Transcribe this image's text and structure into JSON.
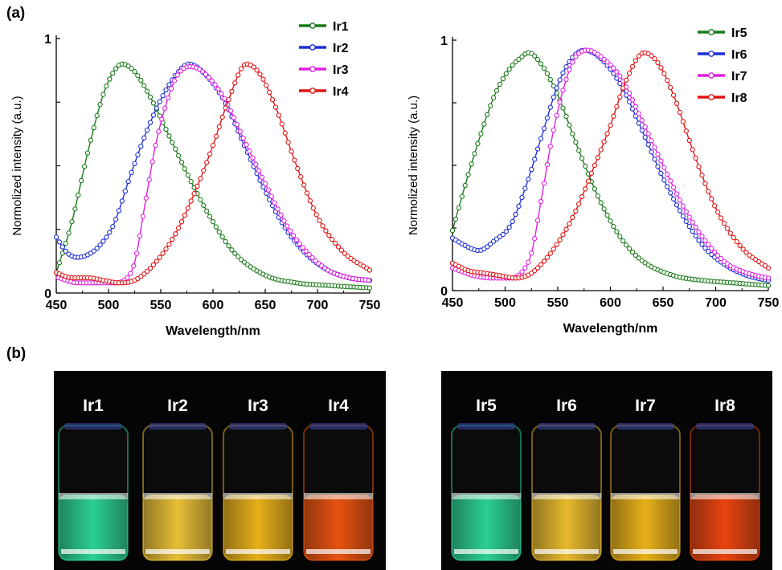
{
  "panels": {
    "a": "(a)",
    "b": "(b)"
  },
  "chart_data": [
    {
      "type": "line",
      "xlabel": "Wavelength/nm",
      "ylabel": "Normolized intensity (a.u.)",
      "xlim": [
        450,
        750
      ],
      "ylim": [
        0,
        1
      ],
      "xticks": [
        450,
        500,
        550,
        600,
        650,
        700,
        750
      ],
      "yticks": [
        0,
        1
      ],
      "legend": "top-right",
      "series": [
        {
          "name": "Ir1",
          "color": "#1a7a1a",
          "peak": 513,
          "amp": 0.9,
          "base": 0.02,
          "onset": 450,
          "x": [
            450,
            465,
            480,
            495,
            505,
            513,
            525,
            540,
            560,
            580,
            600,
            620,
            650,
            680,
            710,
            750
          ],
          "y": [
            0.08,
            0.28,
            0.55,
            0.78,
            0.87,
            0.9,
            0.87,
            0.77,
            0.6,
            0.43,
            0.28,
            0.16,
            0.07,
            0.04,
            0.03,
            0.02
          ]
        },
        {
          "name": "Ir2",
          "color": "#1f2fd6",
          "peak": 577,
          "amp": 0.9,
          "base": 0.04,
          "onset": 450,
          "x": [
            450,
            460,
            470,
            480,
            490,
            505,
            520,
            535,
            550,
            565,
            577,
            590,
            610,
            630,
            650,
            670,
            690,
            710,
            730,
            750
          ],
          "y": [
            0.22,
            0.16,
            0.14,
            0.15,
            0.18,
            0.27,
            0.45,
            0.62,
            0.76,
            0.86,
            0.9,
            0.87,
            0.76,
            0.58,
            0.4,
            0.25,
            0.15,
            0.09,
            0.06,
            0.05
          ]
        },
        {
          "name": "Ir3",
          "color": "#e020e0",
          "peak": 578,
          "amp": 0.89,
          "base": 0.04,
          "onset": 452,
          "x": [
            452,
            470,
            490,
            505,
            515,
            525,
            535,
            545,
            555,
            565,
            578,
            590,
            610,
            630,
            650,
            670,
            690,
            710,
            730,
            750
          ],
          "y": [
            0.06,
            0.04,
            0.04,
            0.04,
            0.05,
            0.12,
            0.35,
            0.58,
            0.74,
            0.85,
            0.89,
            0.87,
            0.77,
            0.6,
            0.43,
            0.27,
            0.16,
            0.09,
            0.06,
            0.05
          ]
        },
        {
          "name": "Ir4",
          "color": "#e01414",
          "peak": 632,
          "amp": 0.9,
          "base": 0.05,
          "onset": 450,
          "x": [
            450,
            465,
            480,
            495,
            510,
            525,
            545,
            565,
            585,
            600,
            615,
            632,
            645,
            660,
            680,
            700,
            725,
            750
          ],
          "y": [
            0.08,
            0.06,
            0.06,
            0.05,
            0.04,
            0.05,
            0.12,
            0.24,
            0.42,
            0.58,
            0.76,
            0.9,
            0.86,
            0.73,
            0.5,
            0.3,
            0.16,
            0.09
          ]
        }
      ]
    },
    {
      "type": "line",
      "xlabel": "Wavelength/nm",
      "ylabel": "Normolized intensity (a.u.)",
      "xlim": [
        450,
        750
      ],
      "ylim": [
        0,
        1
      ],
      "xticks": [
        450,
        500,
        550,
        600,
        650,
        700,
        750
      ],
      "yticks": [
        0,
        1
      ],
      "legend": "top-right",
      "series": [
        {
          "name": "Ir5",
          "color": "#1a7a1a",
          "peak": 522,
          "amp": 0.95,
          "base": 0.02,
          "onset": 450,
          "x": [
            450,
            462,
            475,
            490,
            505,
            515,
            522,
            535,
            550,
            570,
            590,
            610,
            630,
            660,
            690,
            720,
            750
          ],
          "y": [
            0.24,
            0.42,
            0.6,
            0.78,
            0.89,
            0.93,
            0.95,
            0.9,
            0.78,
            0.56,
            0.36,
            0.21,
            0.12,
            0.06,
            0.04,
            0.03,
            0.02
          ]
        },
        {
          "name": "Ir6",
          "color": "#1f2fd6",
          "peak": 575,
          "amp": 0.96,
          "base": 0.04,
          "onset": 450,
          "x": [
            450,
            462,
            475,
            490,
            505,
            520,
            535,
            550,
            562,
            575,
            590,
            610,
            630,
            650,
            670,
            690,
            710,
            730,
            750
          ],
          "y": [
            0.21,
            0.18,
            0.16,
            0.2,
            0.26,
            0.42,
            0.62,
            0.82,
            0.92,
            0.96,
            0.93,
            0.82,
            0.64,
            0.45,
            0.29,
            0.17,
            0.1,
            0.06,
            0.04
          ]
        },
        {
          "name": "Ir7",
          "color": "#e020e0",
          "peak": 578,
          "amp": 0.96,
          "base": 0.05,
          "onset": 450,
          "x": [
            450,
            470,
            490,
            505,
            515,
            525,
            535,
            545,
            555,
            565,
            578,
            595,
            610,
            630,
            650,
            670,
            690,
            710,
            730,
            750
          ],
          "y": [
            0.09,
            0.06,
            0.05,
            0.05,
            0.07,
            0.15,
            0.38,
            0.62,
            0.8,
            0.92,
            0.96,
            0.92,
            0.85,
            0.68,
            0.5,
            0.33,
            0.2,
            0.11,
            0.07,
            0.05
          ]
        },
        {
          "name": "Ir8",
          "color": "#e01414",
          "peak": 632,
          "amp": 0.95,
          "base": 0.06,
          "onset": 450,
          "x": [
            450,
            465,
            480,
            495,
            510,
            525,
            545,
            565,
            585,
            600,
            615,
            632,
            645,
            660,
            680,
            700,
            725,
            750
          ],
          "y": [
            0.11,
            0.08,
            0.07,
            0.06,
            0.05,
            0.07,
            0.16,
            0.3,
            0.5,
            0.66,
            0.84,
            0.95,
            0.91,
            0.78,
            0.54,
            0.33,
            0.17,
            0.09
          ]
        }
      ]
    }
  ],
  "photos": [
    {
      "vials": [
        {
          "label": "Ir1",
          "color": "#2ee6a0"
        },
        {
          "label": "Ir2",
          "color": "#ffd23a"
        },
        {
          "label": "Ir3",
          "color": "#ffc21a"
        },
        {
          "label": "Ir4",
          "color": "#ff5a10"
        }
      ]
    },
    {
      "vials": [
        {
          "label": "Ir5",
          "color": "#2ee6a0"
        },
        {
          "label": "Ir6",
          "color": "#ffcc30"
        },
        {
          "label": "Ir7",
          "color": "#ffc21a"
        },
        {
          "label": "Ir8",
          "color": "#ff4a10"
        }
      ]
    }
  ]
}
